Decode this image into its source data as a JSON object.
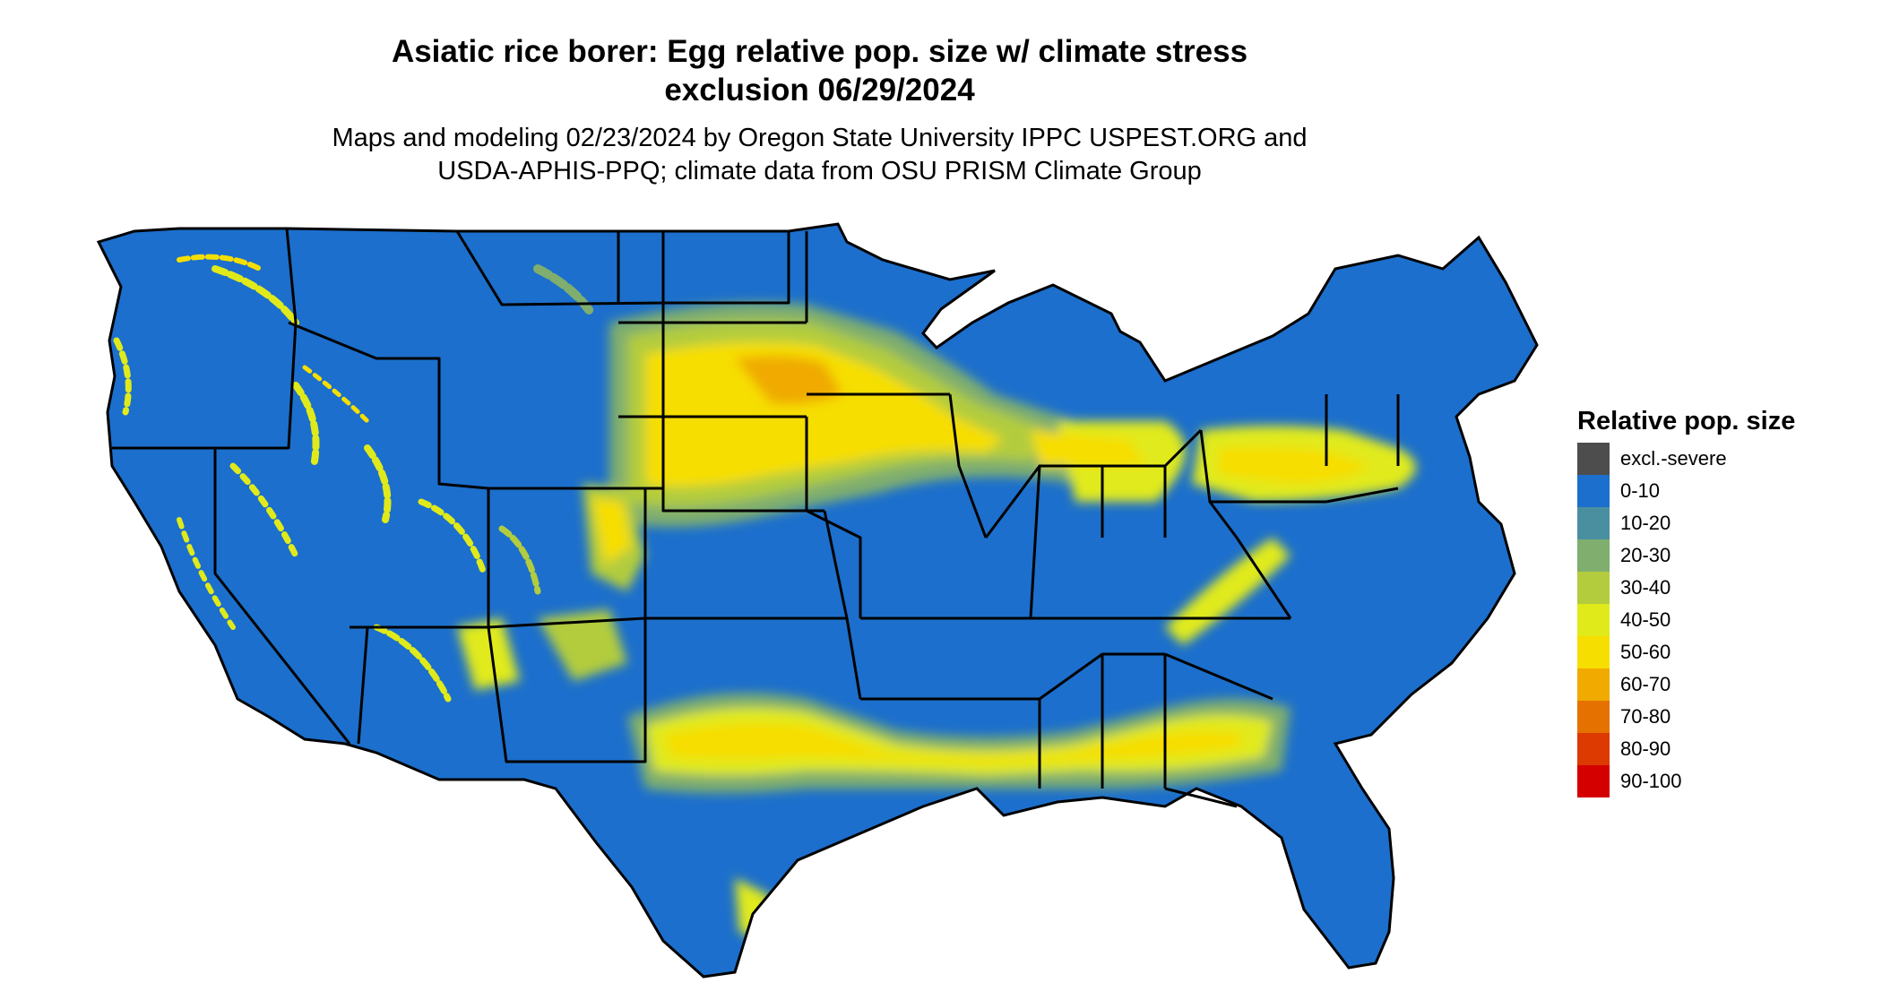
{
  "title": {
    "line1": "Asiatic rice borer: Egg relative pop. size w/ climate stress",
    "line2": "exclusion 06/29/2024"
  },
  "subtitle": {
    "line1": "Maps and modeling 02/23/2024 by Oregon State University IPPC USPEST.ORG and",
    "line2": "USDA-APHIS-PPQ; climate data from OSU PRISM Climate Group"
  },
  "legend": {
    "title": "Relative pop. size",
    "items": [
      {
        "label": "excl.-severe",
        "color": "#4d4d4d"
      },
      {
        "label": "0-10",
        "color": "#1c6fcc"
      },
      {
        "label": "10-20",
        "color": "#4a8fa0"
      },
      {
        "label": "20-30",
        "color": "#7fae6e"
      },
      {
        "label": "30-40",
        "color": "#b2cc3e"
      },
      {
        "label": "40-50",
        "color": "#e0ea1a"
      },
      {
        "label": "50-60",
        "color": "#f6de00"
      },
      {
        "label": "60-70",
        "color": "#f0aa00"
      },
      {
        "label": "70-80",
        "color": "#e57200"
      },
      {
        "label": "80-90",
        "color": "#dc3a00"
      },
      {
        "label": "90-100",
        "color": "#d40000"
      }
    ]
  },
  "map": {
    "base_color": "#1c6fcc",
    "border_color": "#000000"
  }
}
